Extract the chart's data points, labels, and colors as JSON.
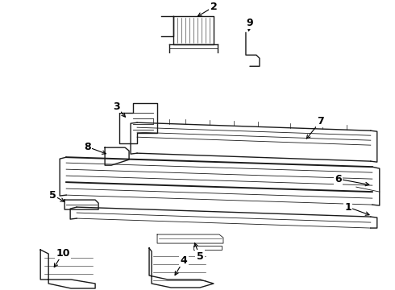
{
  "background_color": "#ffffff",
  "line_color": "#1a1a1a",
  "label_color": "#000000",
  "lw_thin": 0.6,
  "lw_med": 1.0,
  "lw_thick": 1.4
}
